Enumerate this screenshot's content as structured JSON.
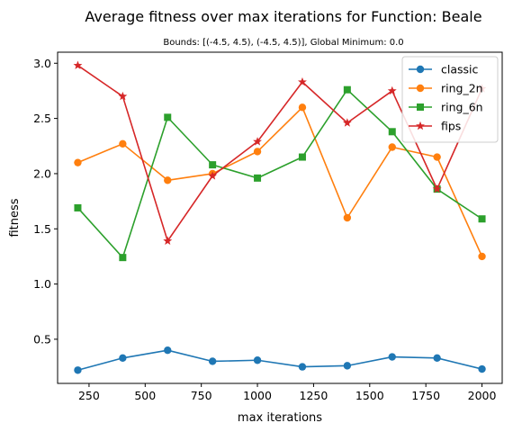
{
  "chart_data": {
    "type": "line",
    "title": "Average fitness over max iterations for Function: Beale",
    "subtitle": "Bounds: [(-4.5, 4.5), (-4.5, 4.5)], Global Minimum: 0.0",
    "xlabel": "max iterations",
    "ylabel": "fitness",
    "x": [
      200,
      400,
      600,
      800,
      1000,
      1200,
      1400,
      1600,
      1800,
      2000
    ],
    "xlim": [
      110,
      2090
    ],
    "ylim": [
      0.1,
      3.1
    ],
    "xticks": [
      250,
      500,
      750,
      1000,
      1250,
      1500,
      1750,
      2000
    ],
    "yticks": [
      0.5,
      1.0,
      1.5,
      2.0,
      2.5,
      3.0
    ],
    "xtick_labels": [
      "250",
      "500",
      "750",
      "1000",
      "1250",
      "1500",
      "1750",
      "2000"
    ],
    "ytick_labels": [
      "0.5",
      "1.0",
      "1.5",
      "2.0",
      "2.5",
      "3.0"
    ],
    "grid": false,
    "legend_position": "top-right",
    "series": [
      {
        "name": "classic",
        "color": "#1f77b4",
        "marker": "circle",
        "values": [
          0.22,
          0.33,
          0.4,
          0.3,
          0.31,
          0.25,
          0.26,
          0.34,
          0.33,
          0.23
        ]
      },
      {
        "name": "ring_2n",
        "color": "#ff7f0e",
        "marker": "circle",
        "values": [
          2.1,
          2.27,
          1.94,
          2.0,
          2.2,
          2.6,
          1.6,
          2.24,
          2.15,
          1.25
        ]
      },
      {
        "name": "ring_6n",
        "color": "#2ca02c",
        "marker": "square",
        "values": [
          1.69,
          1.24,
          2.51,
          2.08,
          1.96,
          2.15,
          2.76,
          2.38,
          1.86,
          1.59
        ]
      },
      {
        "name": "fips",
        "color": "#d62728",
        "marker": "star",
        "values": [
          2.98,
          2.7,
          1.39,
          1.98,
          2.29,
          2.83,
          2.46,
          2.75,
          1.86,
          2.77
        ]
      }
    ]
  }
}
